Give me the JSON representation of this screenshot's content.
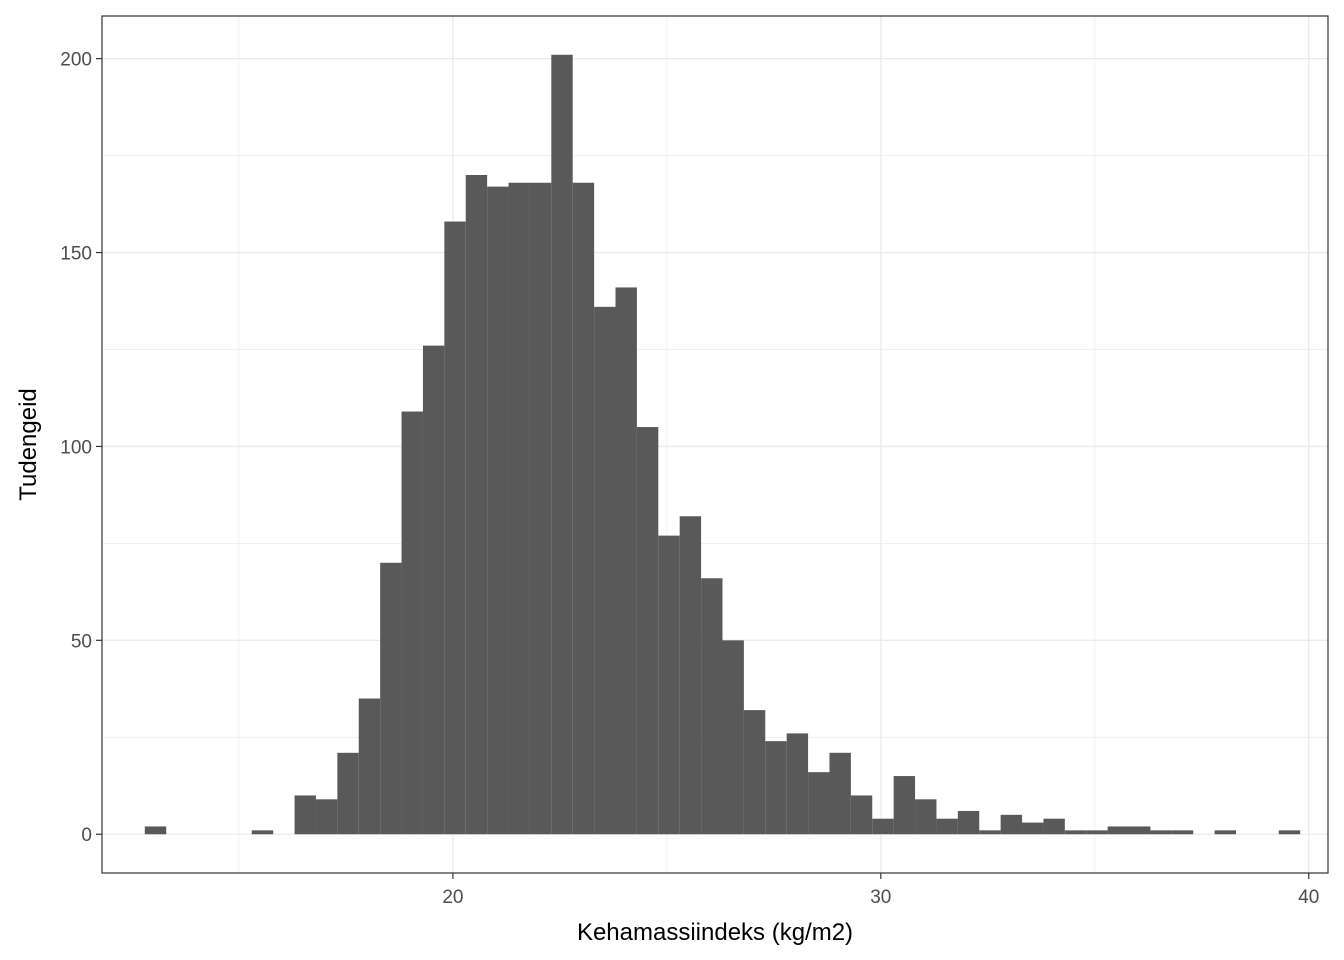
{
  "chart_data": {
    "type": "bar",
    "histogram": true,
    "title": "",
    "xlabel": "Kehamassiindeks (kg/m2)",
    "ylabel": "Tudengeid",
    "xlim": [
      11.8,
      40.45
    ],
    "ylim": [
      -10,
      211
    ],
    "xticks": [
      20,
      30,
      40
    ],
    "yticks": [
      0,
      50,
      100,
      150,
      200
    ],
    "grid": true,
    "legend": "none",
    "bin_start": 12.8,
    "bin_width": 0.5,
    "values": [
      2,
      0,
      0,
      0,
      0,
      1,
      0,
      10,
      9,
      21,
      35,
      70,
      109,
      126,
      158,
      170,
      167,
      168,
      168,
      201,
      168,
      136,
      141,
      105,
      77,
      82,
      66,
      50,
      32,
      24,
      26,
      16,
      21,
      10,
      4,
      15,
      9,
      4,
      6,
      1,
      5,
      3,
      4,
      1,
      1,
      2,
      2,
      1,
      1,
      0,
      1,
      0,
      0,
      1
    ],
    "colors": {
      "bar": "#595959",
      "grid": "#ebebeb",
      "border": "#333333",
      "text": "#4d4d4d"
    }
  }
}
